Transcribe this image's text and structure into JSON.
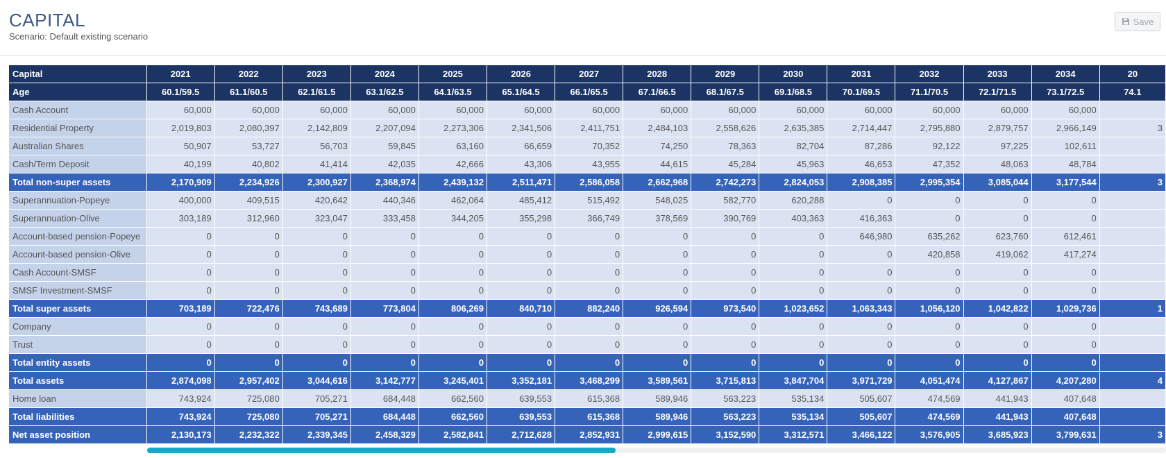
{
  "header": {
    "title": "CAPITAL",
    "subtitle": "Scenario: Default existing scenario",
    "save_label": "Save"
  },
  "table": {
    "corner_label": "Capital",
    "years": [
      "2021",
      "2022",
      "2023",
      "2024",
      "2025",
      "2026",
      "2027",
      "2028",
      "2029",
      "2030",
      "2031",
      "2032",
      "2033",
      "2034",
      "20"
    ],
    "age_label": "Age",
    "ages": [
      "60.1/59.5",
      "61.1/60.5",
      "62.1/61.5",
      "63.1/62.5",
      "64.1/63.5",
      "65.1/64.5",
      "66.1/65.5",
      "67.1/66.5",
      "68.1/67.5",
      "69.1/68.5",
      "70.1/69.5",
      "71.1/70.5",
      "72.1/71.5",
      "73.1/72.5",
      "74.1"
    ],
    "rows": [
      {
        "label": "Cash Account",
        "type": "normal",
        "values": [
          "60,000",
          "60,000",
          "60,000",
          "60,000",
          "60,000",
          "60,000",
          "60,000",
          "60,000",
          "60,000",
          "60,000",
          "60,000",
          "60,000",
          "60,000",
          "60,000",
          ""
        ]
      },
      {
        "label": "Residential Property",
        "type": "normal",
        "values": [
          "2,019,803",
          "2,080,397",
          "2,142,809",
          "2,207,094",
          "2,273,306",
          "2,341,506",
          "2,411,751",
          "2,484,103",
          "2,558,626",
          "2,635,385",
          "2,714,447",
          "2,795,880",
          "2,879,757",
          "2,966,149",
          "3"
        ]
      },
      {
        "label": "Australian Shares",
        "type": "normal",
        "values": [
          "50,907",
          "53,727",
          "56,703",
          "59,845",
          "63,160",
          "66,659",
          "70,352",
          "74,250",
          "78,363",
          "82,704",
          "87,286",
          "92,122",
          "97,225",
          "102,611",
          ""
        ]
      },
      {
        "label": "Cash/Term Deposit",
        "type": "normal",
        "values": [
          "40,199",
          "40,802",
          "41,414",
          "42,035",
          "42,666",
          "43,306",
          "43,955",
          "44,615",
          "45,284",
          "45,963",
          "46,653",
          "47,352",
          "48,063",
          "48,784",
          ""
        ]
      },
      {
        "label": "Total non-super assets",
        "type": "total",
        "values": [
          "2,170,909",
          "2,234,926",
          "2,300,927",
          "2,368,974",
          "2,439,132",
          "2,511,471",
          "2,586,058",
          "2,662,968",
          "2,742,273",
          "2,824,053",
          "2,908,385",
          "2,995,354",
          "3,085,044",
          "3,177,544",
          "3"
        ]
      },
      {
        "label": "Superannuation-Popeye",
        "type": "normal",
        "values": [
          "400,000",
          "409,515",
          "420,642",
          "440,346",
          "462,064",
          "485,412",
          "515,492",
          "548,025",
          "582,770",
          "620,288",
          "0",
          "0",
          "0",
          "0",
          ""
        ]
      },
      {
        "label": "Superannuation-Olive",
        "type": "normal",
        "values": [
          "303,189",
          "312,960",
          "323,047",
          "333,458",
          "344,205",
          "355,298",
          "366,749",
          "378,569",
          "390,769",
          "403,363",
          "416,363",
          "0",
          "0",
          "0",
          ""
        ]
      },
      {
        "label": "Account-based pension-Popeye",
        "type": "normal",
        "values": [
          "0",
          "0",
          "0",
          "0",
          "0",
          "0",
          "0",
          "0",
          "0",
          "0",
          "646,980",
          "635,262",
          "623,760",
          "612,461",
          ""
        ]
      },
      {
        "label": "Account-based pension-Olive",
        "type": "normal",
        "values": [
          "0",
          "0",
          "0",
          "0",
          "0",
          "0",
          "0",
          "0",
          "0",
          "0",
          "0",
          "420,858",
          "419,062",
          "417,274",
          ""
        ]
      },
      {
        "label": "Cash Account-SMSF",
        "type": "normal",
        "values": [
          "0",
          "0",
          "0",
          "0",
          "0",
          "0",
          "0",
          "0",
          "0",
          "0",
          "0",
          "0",
          "0",
          "0",
          ""
        ]
      },
      {
        "label": "SMSF Investment-SMSF",
        "type": "normal",
        "values": [
          "0",
          "0",
          "0",
          "0",
          "0",
          "0",
          "0",
          "0",
          "0",
          "0",
          "0",
          "0",
          "0",
          "0",
          ""
        ]
      },
      {
        "label": "Total super assets",
        "type": "total",
        "values": [
          "703,189",
          "722,476",
          "743,689",
          "773,804",
          "806,269",
          "840,710",
          "882,240",
          "926,594",
          "973,540",
          "1,023,652",
          "1,063,343",
          "1,056,120",
          "1,042,822",
          "1,029,736",
          "1"
        ]
      },
      {
        "label": "Company",
        "type": "normal",
        "values": [
          "0",
          "0",
          "0",
          "0",
          "0",
          "0",
          "0",
          "0",
          "0",
          "0",
          "0",
          "0",
          "0",
          "0",
          ""
        ]
      },
      {
        "label": "Trust",
        "type": "normal",
        "values": [
          "0",
          "0",
          "0",
          "0",
          "0",
          "0",
          "0",
          "0",
          "0",
          "0",
          "0",
          "0",
          "0",
          "0",
          ""
        ]
      },
      {
        "label": "Total entity assets",
        "type": "total",
        "values": [
          "0",
          "0",
          "0",
          "0",
          "0",
          "0",
          "0",
          "0",
          "0",
          "0",
          "0",
          "0",
          "0",
          "0",
          ""
        ]
      },
      {
        "label": "Total assets",
        "type": "total",
        "values": [
          "2,874,098",
          "2,957,402",
          "3,044,616",
          "3,142,777",
          "3,245,401",
          "3,352,181",
          "3,468,299",
          "3,589,561",
          "3,715,813",
          "3,847,704",
          "3,971,729",
          "4,051,474",
          "4,127,867",
          "4,207,280",
          "4"
        ]
      },
      {
        "label": "Home loan",
        "type": "normal",
        "values": [
          "743,924",
          "725,080",
          "705,271",
          "684,448",
          "662,560",
          "639,553",
          "615,368",
          "589,946",
          "563,223",
          "535,134",
          "505,607",
          "474,569",
          "441,943",
          "407,648",
          ""
        ]
      },
      {
        "label": "Total liabilities",
        "type": "total",
        "values": [
          "743,924",
          "725,080",
          "705,271",
          "684,448",
          "662,560",
          "639,553",
          "615,368",
          "589,946",
          "563,223",
          "535,134",
          "505,607",
          "474,569",
          "441,943",
          "407,648",
          ""
        ]
      },
      {
        "label": "Net asset position",
        "type": "total",
        "values": [
          "2,130,173",
          "2,232,322",
          "2,339,345",
          "2,458,329",
          "2,582,841",
          "2,712,628",
          "2,852,931",
          "2,999,615",
          "3,152,590",
          "3,312,571",
          "3,466,122",
          "3,576,905",
          "3,685,923",
          "3,799,631",
          "3"
        ]
      }
    ]
  },
  "scrollbar": {
    "position_fraction": 0.0,
    "visible_fraction": 0.46
  },
  "colors": {
    "title": "#3b5a86",
    "header_bg": "#1b3464",
    "total_bg": "#3563b9",
    "row_bg": "#dbe3f3",
    "label_bg": "#c4d2ea",
    "scroll_thumb": "#17a9c9"
  },
  "icons": {
    "save": "floppy-disk-icon"
  }
}
